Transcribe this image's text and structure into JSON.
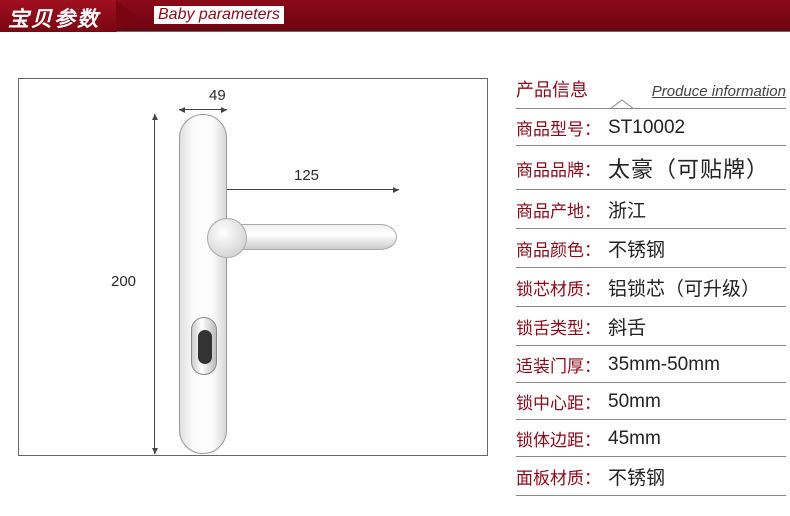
{
  "header": {
    "title_cn": "宝贝参数",
    "title_en": "Baby parameters"
  },
  "diagram": {
    "dim_width": "49",
    "dim_handle": "125",
    "dim_height": "200",
    "plate_color_light": "#fcfcfc",
    "plate_color_dark": "#d8d8d8",
    "line_color": "#444444"
  },
  "info": {
    "section_title_cn": "产品信息",
    "section_title_en": "Produce information",
    "rows": [
      {
        "k": "商品型号：",
        "v": "ST10002"
      },
      {
        "k": "商品品牌：",
        "v": "太豪（可贴牌）"
      },
      {
        "k": "商品产地：",
        "v": "浙江"
      },
      {
        "k": "商品颜色：",
        "v": "不锈钢"
      },
      {
        "k": "锁芯材质：",
        "v": "铝锁芯（可升级）"
      },
      {
        "k": "锁舌类型：",
        "v": "斜舌"
      },
      {
        "k": "适装门厚：",
        "v": "35mm-50mm"
      },
      {
        "k": "锁中心距：",
        "v": "50mm"
      },
      {
        "k": "锁体边距：",
        "v": "45mm"
      },
      {
        "k": "面板材质：",
        "v": "不锈钢"
      }
    ]
  },
  "colors": {
    "brand_red": "#8b0a1a",
    "divider": "#8a8a8a",
    "text": "#222222"
  }
}
